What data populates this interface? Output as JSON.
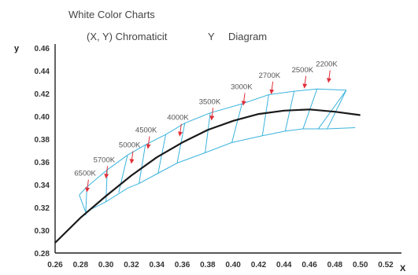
{
  "chart_data": {
    "type": "line",
    "title": "White Color Charts",
    "subtitle_parts": [
      "(X, Y) Chromaticit",
      "Y",
      "Diagram"
    ],
    "xlabel": "X",
    "ylabel": "y",
    "xlim": [
      0.26,
      0.52
    ],
    "ylim": [
      0.28,
      0.46
    ],
    "x_ticks": [
      "0.26",
      "0.28",
      "0.30",
      "0.32",
      "0.34",
      "0.36",
      "0.38",
      "0.40",
      "0.42",
      "0.44",
      "0.46",
      "0.48",
      "0.50",
      "0.52"
    ],
    "y_ticks": [
      "0.28",
      "0.30",
      "0.32",
      "0.34",
      "0.36",
      "0.38",
      "0.40",
      "0.42",
      "0.44",
      "0.46"
    ],
    "colors": {
      "locus": "#1a1a1a",
      "bins": "#3bb3dc",
      "arrows": "#e0303a",
      "axis": "#222222"
    },
    "locus": {
      "x": [
        0.26,
        0.28,
        0.3,
        0.32,
        0.34,
        0.36,
        0.38,
        0.4,
        0.42,
        0.44,
        0.46,
        0.48,
        0.5
      ],
      "y": [
        0.289,
        0.311,
        0.33,
        0.348,
        0.364,
        0.377,
        0.388,
        0.396,
        0.402,
        0.405,
        0.406,
        0.404,
        0.401
      ]
    },
    "bin_band": {
      "upper": {
        "x": [
          0.279,
          0.285,
          0.301,
          0.317,
          0.331,
          0.347,
          0.362,
          0.382,
          0.407,
          0.428,
          0.448,
          0.466,
          0.489
        ],
        "y": [
          0.331,
          0.338,
          0.353,
          0.366,
          0.375,
          0.384,
          0.394,
          0.403,
          0.411,
          0.419,
          0.422,
          0.424,
          0.423
        ]
      },
      "lower": {
        "x": [
          0.284,
          0.3,
          0.317,
          0.326,
          0.341,
          0.356,
          0.378,
          0.399,
          0.423,
          0.441,
          0.455,
          0.474,
          0.496
        ],
        "y": [
          0.316,
          0.325,
          0.337,
          0.341,
          0.35,
          0.359,
          0.368,
          0.377,
          0.383,
          0.387,
          0.389,
          0.389,
          0.39
        ]
      },
      "dividers": [
        {
          "top": [
            0.285,
            0.338
          ],
          "bottom": [
            0.284,
            0.313
          ]
        },
        {
          "top": [
            0.301,
            0.353
          ],
          "bottom": [
            0.3,
            0.325
          ]
        },
        {
          "top": [
            0.317,
            0.366
          ],
          "bottom": [
            0.31,
            0.333
          ]
        },
        {
          "top": [
            0.331,
            0.375
          ],
          "bottom": [
            0.326,
            0.341
          ]
        },
        {
          "top": [
            0.347,
            0.384
          ],
          "bottom": [
            0.341,
            0.35
          ]
        },
        {
          "top": [
            0.362,
            0.394
          ],
          "bottom": [
            0.356,
            0.359
          ]
        },
        {
          "top": [
            0.382,
            0.403
          ],
          "bottom": [
            0.378,
            0.368
          ]
        },
        {
          "top": [
            0.407,
            0.411
          ],
          "bottom": [
            0.399,
            0.377
          ]
        },
        {
          "top": [
            0.428,
            0.419
          ],
          "bottom": [
            0.423,
            0.383
          ]
        },
        {
          "top": [
            0.448,
            0.422
          ],
          "bottom": [
            0.441,
            0.387
          ]
        },
        {
          "top": [
            0.466,
            0.424
          ],
          "bottom": [
            0.455,
            0.389
          ]
        },
        {
          "top": [
            0.489,
            0.423
          ],
          "bottom": [
            0.474,
            0.389
          ]
        }
      ],
      "right_end": {
        "top": [
          0.489,
          0.423
        ],
        "bottom": [
          0.467,
          0.389
        ]
      }
    },
    "cct_labels": [
      {
        "label": "6500K",
        "x": 0.285,
        "y": 0.334
      },
      {
        "label": "5700K",
        "x": 0.3,
        "y": 0.346
      },
      {
        "label": "5000K",
        "x": 0.32,
        "y": 0.359
      },
      {
        "label": "4500K",
        "x": 0.333,
        "y": 0.372
      },
      {
        "label": "4000K",
        "x": 0.358,
        "y": 0.383
      },
      {
        "label": "3500K",
        "x": 0.383,
        "y": 0.397
      },
      {
        "label": "3000K",
        "x": 0.408,
        "y": 0.41
      },
      {
        "label": "2700K",
        "x": 0.43,
        "y": 0.42
      },
      {
        "label": "2500K",
        "x": 0.456,
        "y": 0.425
      },
      {
        "label": "2200K",
        "x": 0.475,
        "y": 0.43
      }
    ]
  }
}
